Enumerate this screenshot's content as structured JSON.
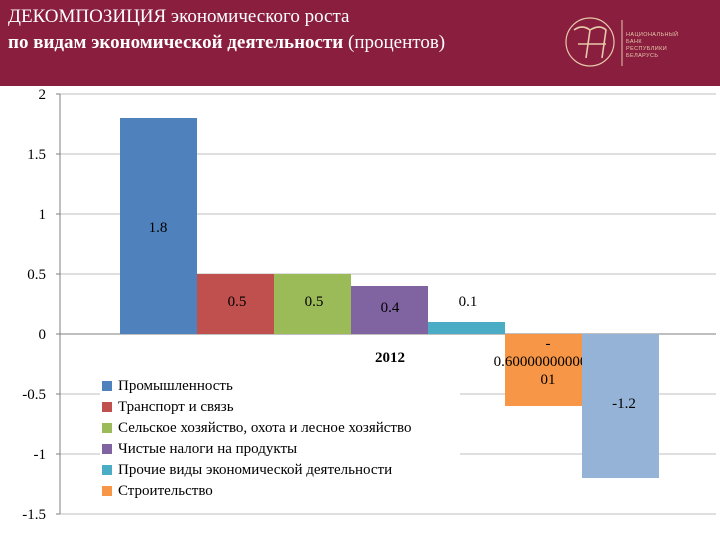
{
  "header": {
    "title_line1": "ДЕКОМПОЗИЦИЯ экономического роста",
    "title_line2_bold": "по видам экономической деятельности",
    "title_line2_rest": " (процентов)",
    "logo_text": [
      "Национальный",
      "банк",
      "Республики",
      "Беларусь"
    ]
  },
  "colors": {
    "header_bg": "#8a1e3f",
    "series": [
      "#4f81bd",
      "#c0504d",
      "#9bbb59",
      "#8064a2",
      "#4bacc6",
      "#f79646",
      "#95b3d7"
    ]
  },
  "chart_data": {
    "type": "bar",
    "categories": [
      "2012"
    ],
    "xlabel": "2012",
    "ylim": [
      -1.5,
      2
    ],
    "yticks": [
      "2",
      "1.5",
      "1",
      "0.5",
      "0",
      "-0.5",
      "-1",
      "-1.5"
    ],
    "grid": true,
    "legend_position": "bottom-left",
    "series": [
      {
        "name": "Промышленность",
        "value": 1.8,
        "label": "1.8"
      },
      {
        "name": "Транспорт и связь",
        "value": 0.5,
        "label": "0.5"
      },
      {
        "name": "Сельское хозяйство, охота и лесное хозяйство",
        "value": 0.5,
        "label": "0.5"
      },
      {
        "name": "Чистые налоги на продукты",
        "value": 0.4,
        "label": "0.4"
      },
      {
        "name": "Прочие виды экономической деятельности",
        "value": 0.1,
        "label": "0.1"
      },
      {
        "name": "Строительство",
        "value": -0.6,
        "label": "-\n0.6000000000000\n01"
      },
      {
        "name": "",
        "value": -1.2,
        "label": "-1.2"
      }
    ]
  }
}
